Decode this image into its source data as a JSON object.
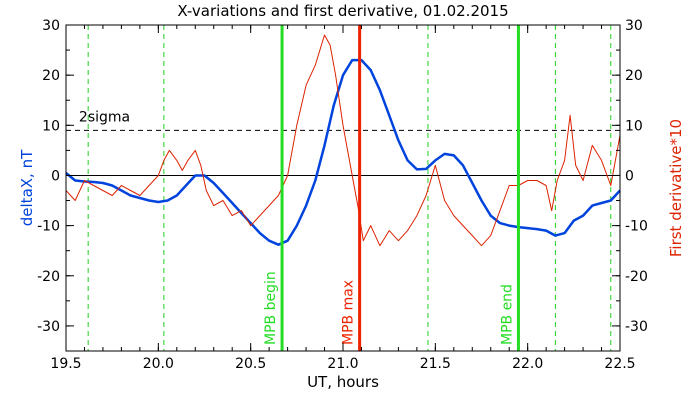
{
  "chart_data": {
    "type": "line",
    "title": "X-variations and first derivative, 01.02.2015",
    "xlabel": "UT, hours",
    "ylabel_left": "deltaX, nT",
    "ylabel_right": "First derivative*10",
    "xlim": [
      19.5,
      22.5
    ],
    "ylim": [
      -35,
      30
    ],
    "xticks": [
      19.5,
      20.0,
      20.5,
      21.0,
      21.5,
      22.0,
      22.5
    ],
    "xtick_labels": [
      "19.5",
      "20.0",
      "20.5",
      "21.0",
      "21.5",
      "22.0",
      "22.5"
    ],
    "yticks": [
      -30,
      -20,
      -10,
      0,
      10,
      20,
      30
    ],
    "ytick_labels": [
      "-30",
      "-20",
      "-10",
      "0",
      "10",
      "20",
      "30"
    ],
    "threshold": {
      "label": "2sigma",
      "value": 9
    },
    "zero_line": 0,
    "colors": {
      "deltaX": "#0044dd",
      "derivative": "#dd2200",
      "marker_green": "#22dd22",
      "marker_red": "#ee2200",
      "dashed_green": "#22cc22"
    },
    "markers": [
      {
        "label": "MPB begin",
        "x": 20.67,
        "color": "#22dd22"
      },
      {
        "label": "MPB max",
        "x": 21.09,
        "color": "#ee2200"
      },
      {
        "label": "MPB end",
        "x": 21.95,
        "color": "#22dd22"
      }
    ],
    "dashed_lines_x": [
      19.62,
      20.03,
      21.46,
      22.15,
      22.45
    ],
    "series": [
      {
        "name": "deltaX, nT",
        "x": [
          19.5,
          19.55,
          19.6,
          19.65,
          19.7,
          19.75,
          19.8,
          19.85,
          19.9,
          19.95,
          20.0,
          20.05,
          20.1,
          20.15,
          20.2,
          20.25,
          20.3,
          20.35,
          20.4,
          20.45,
          20.5,
          20.55,
          20.6,
          20.65,
          20.7,
          20.75,
          20.8,
          20.85,
          20.9,
          20.95,
          21.0,
          21.05,
          21.1,
          21.15,
          21.2,
          21.25,
          21.3,
          21.35,
          21.4,
          21.45,
          21.5,
          21.55,
          21.6,
          21.65,
          21.7,
          21.75,
          21.8,
          21.85,
          21.9,
          21.95,
          22.0,
          22.05,
          22.1,
          22.15,
          22.2,
          22.25,
          22.3,
          22.35,
          22.4,
          22.45,
          22.5
        ],
        "values": [
          0.5,
          -1,
          -1.2,
          -1.3,
          -1.5,
          -2,
          -3,
          -4,
          -4.5,
          -5,
          -5.3,
          -5,
          -4,
          -2,
          0,
          0,
          -1.5,
          -3.5,
          -5.5,
          -7.5,
          -9.5,
          -11.5,
          -13,
          -13.8,
          -13,
          -10,
          -6,
          -1,
          6,
          14,
          20,
          23,
          23,
          21,
          17,
          12,
          7,
          3,
          1.2,
          1.3,
          3,
          4.3,
          4,
          2,
          -1.5,
          -5,
          -8,
          -9.5,
          -10,
          -10.3,
          -10.5,
          -10.7,
          -11,
          -12,
          -11.5,
          -9,
          -8,
          -6,
          -5.5,
          -5,
          -3
        ]
      },
      {
        "name": "First derivative*10",
        "x": [
          19.5,
          19.55,
          19.6,
          19.65,
          19.7,
          19.75,
          19.8,
          19.85,
          19.9,
          19.95,
          20.0,
          20.03,
          20.06,
          20.1,
          20.13,
          20.16,
          20.2,
          20.23,
          20.26,
          20.3,
          20.35,
          20.4,
          20.45,
          20.5,
          20.55,
          20.6,
          20.65,
          20.7,
          20.75,
          20.8,
          20.85,
          20.9,
          20.93,
          20.96,
          21.0,
          21.05,
          21.08,
          21.11,
          21.15,
          21.2,
          21.25,
          21.3,
          21.35,
          21.4,
          21.45,
          21.5,
          21.55,
          21.6,
          21.65,
          21.7,
          21.75,
          21.8,
          21.85,
          21.9,
          21.95,
          22.0,
          22.05,
          22.1,
          22.13,
          22.16,
          22.2,
          22.23,
          22.26,
          22.3,
          22.35,
          22.4,
          22.45,
          22.5
        ],
        "values": [
          -3,
          -5,
          -1,
          -2,
          -3,
          -4,
          -2,
          -3,
          -4,
          -2,
          0,
          3,
          5,
          3,
          1,
          3,
          5,
          2,
          -3,
          -6,
          -5,
          -8,
          -7,
          -10,
          -8,
          -6,
          -4,
          0,
          10,
          18,
          22,
          28,
          26,
          20,
          10,
          0,
          -6,
          -13,
          -10,
          -14,
          -11,
          -13,
          -11,
          -8,
          -4,
          2,
          -5,
          -8,
          -10,
          -12,
          -14,
          -12,
          -7,
          -2,
          -2,
          -1,
          -1,
          -2,
          -7,
          -1,
          3,
          12,
          2,
          -1,
          6,
          3,
          -2,
          8
        ]
      }
    ]
  }
}
